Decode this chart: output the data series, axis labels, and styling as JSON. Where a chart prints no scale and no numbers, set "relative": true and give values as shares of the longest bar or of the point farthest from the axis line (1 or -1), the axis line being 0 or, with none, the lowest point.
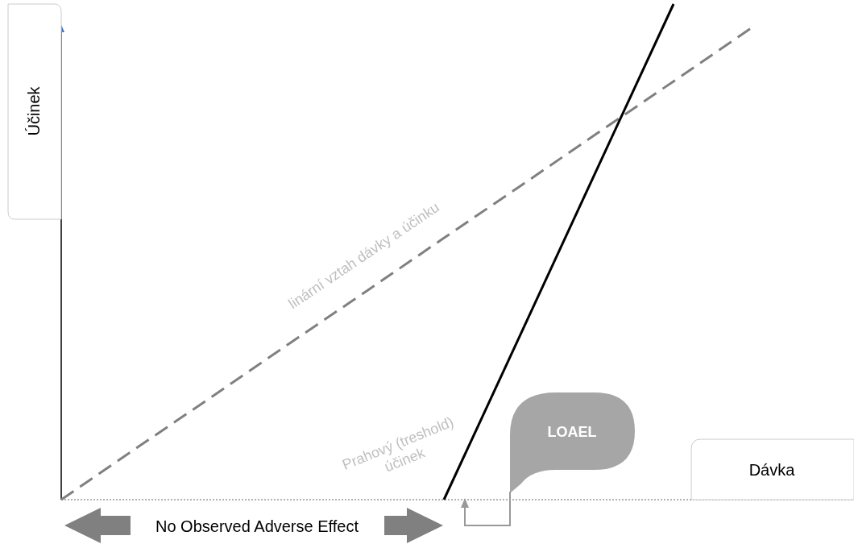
{
  "chart_data": {
    "type": "line",
    "relative": true,
    "xlabel": "Dávka",
    "ylabel": "Účinek",
    "categories": [
      null,
      null,
      null,
      null,
      null,
      null,
      null,
      null,
      null,
      null,
      null
    ],
    "series": [
      {
        "color": "#808080",
        "line_style": "dashed",
        "values": [
          0,
          0.106,
          0.211,
          0.317,
          0.422,
          0.528,
          0.633,
          0.739,
          0.844,
          0.95,
          null
        ]
      },
      {
        "color": "#000000",
        "line_style": "solid",
        "values": [
          null,
          null,
          null,
          null,
          null,
          0,
          0.333,
          0.667,
          1,
          null,
          null
        ]
      }
    ],
    "annotations": [
      "linární vztah dávky a účinku",
      "Prahový (treshold) účinek",
      "LOAEL",
      "No Observed Adverse Effect"
    ],
    "marker": "none"
  }
}
